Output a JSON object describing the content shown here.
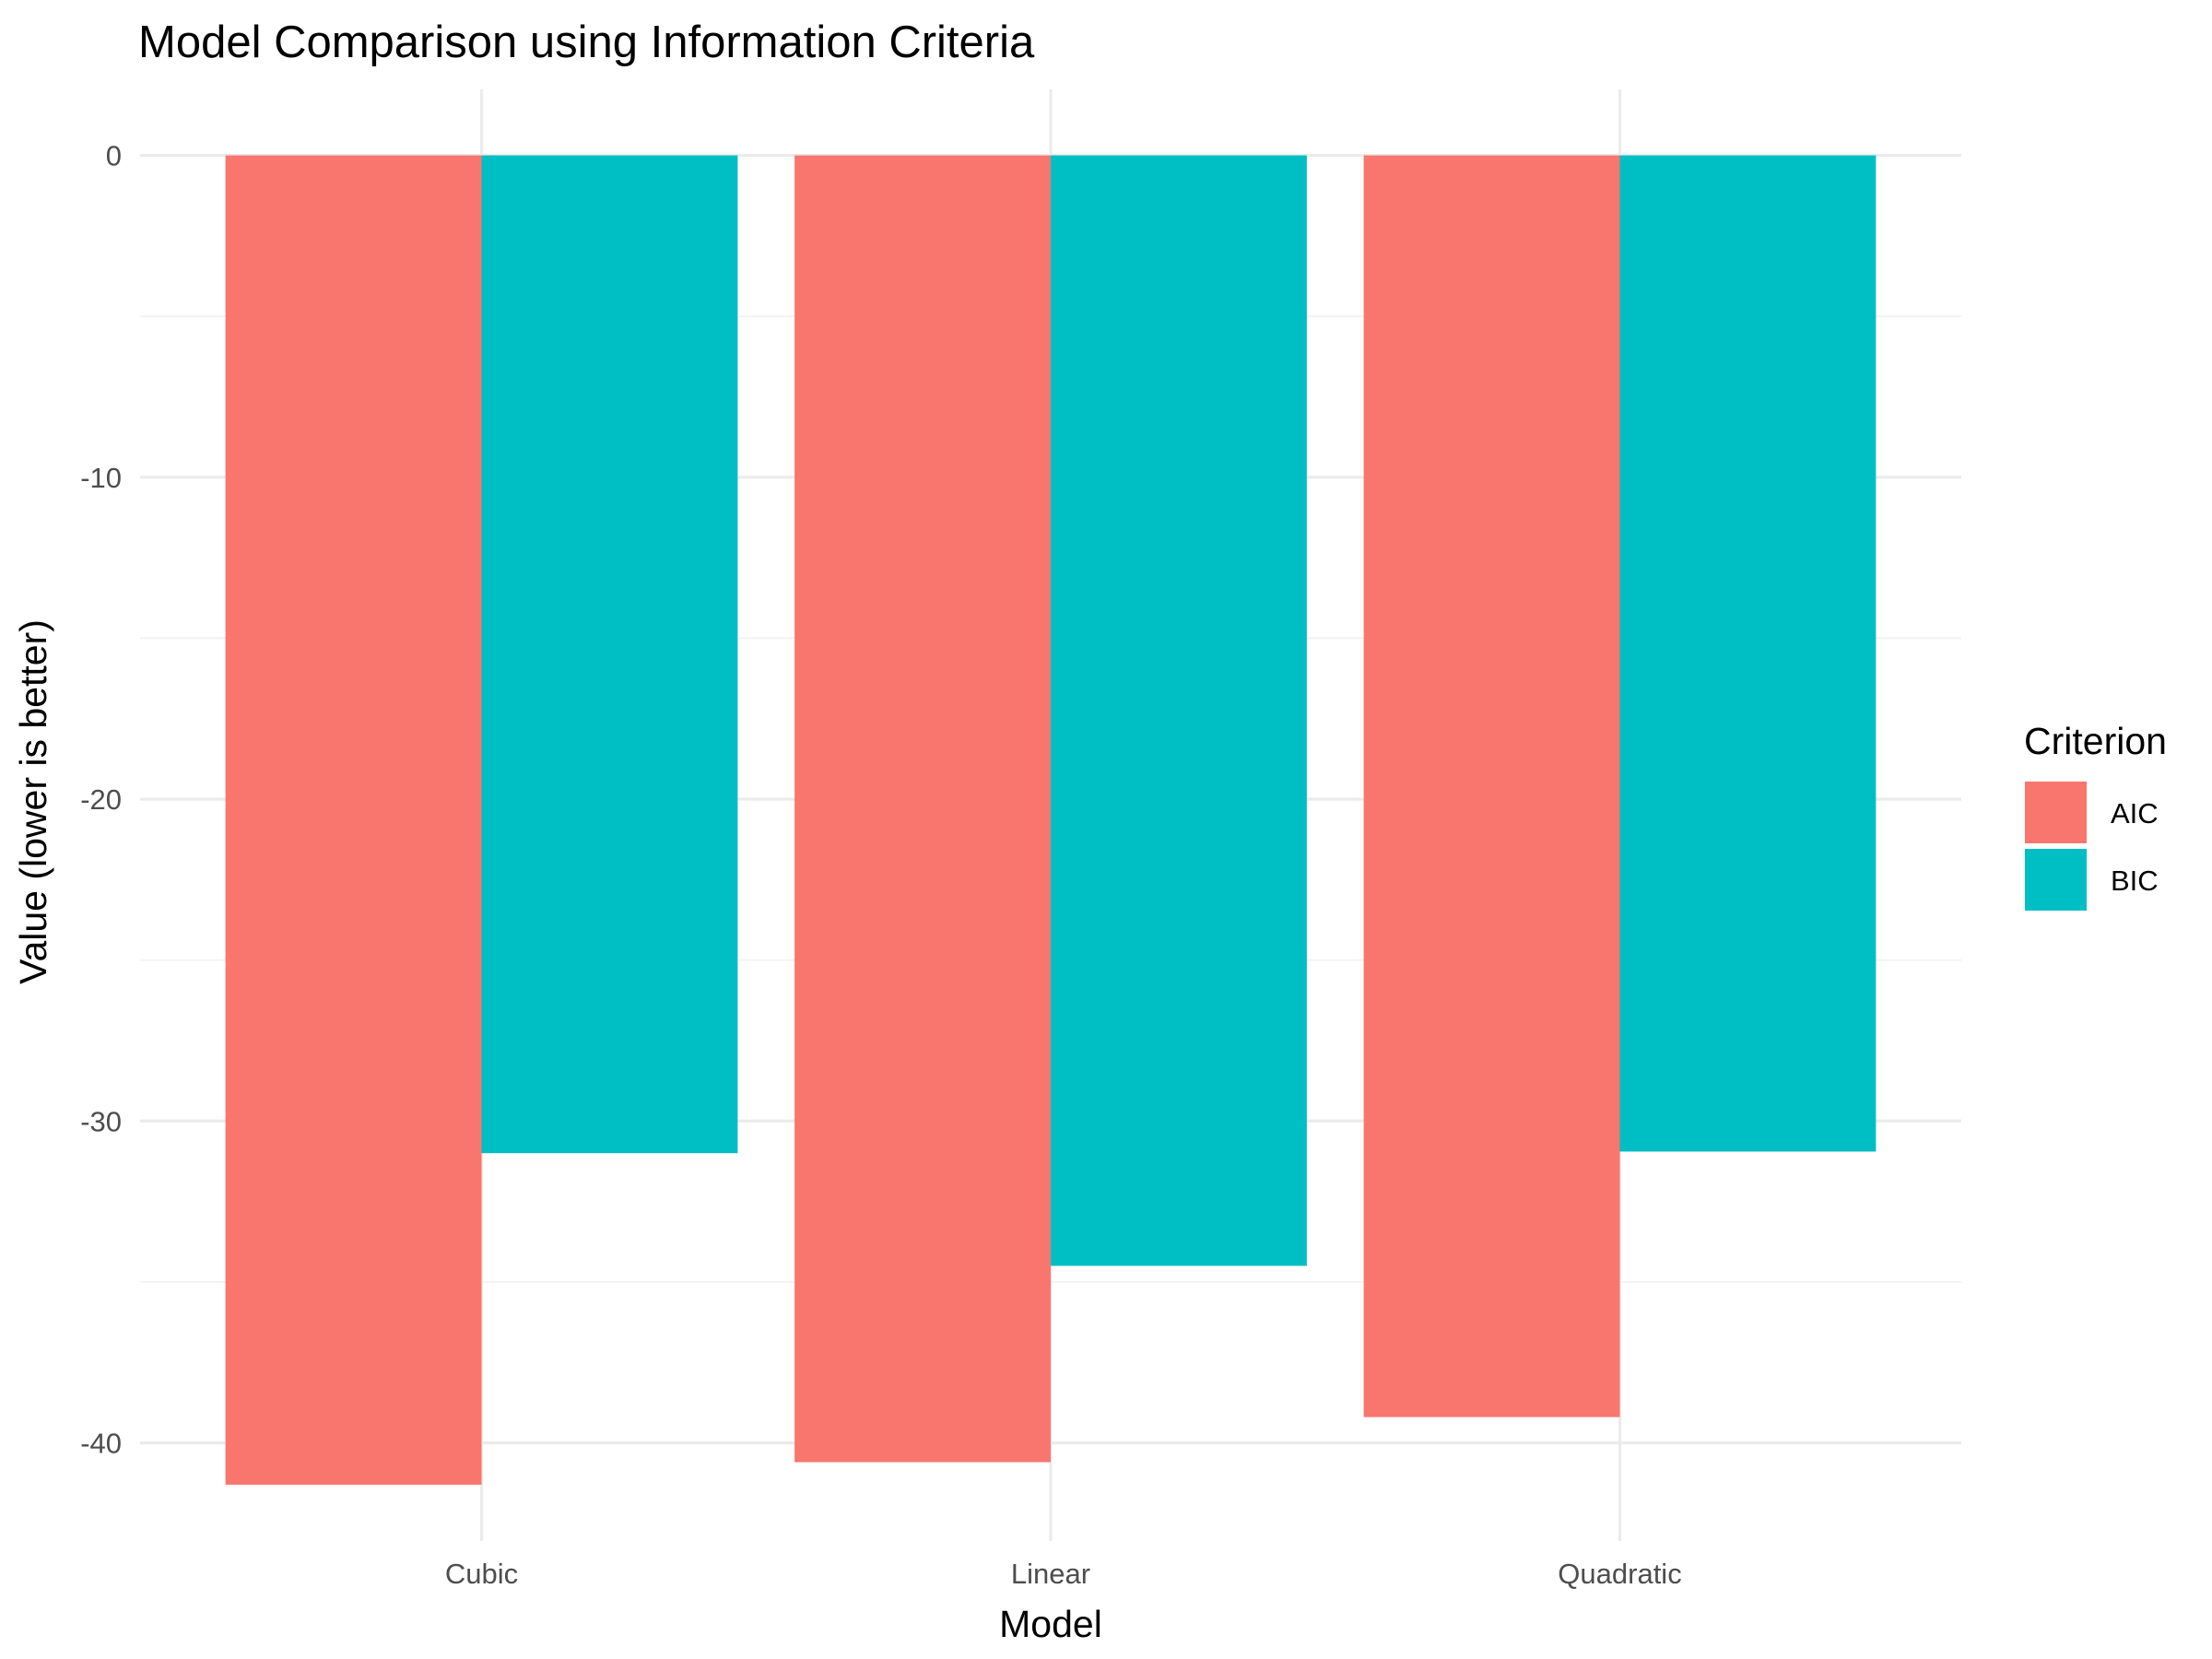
{
  "chart_data": {
    "type": "bar",
    "title": "Model Comparison using Information Criteria",
    "xlabel": "Model",
    "ylabel": "Value (lower is better)",
    "categories": [
      "Cubic",
      "Linear",
      "Quadratic"
    ],
    "series": [
      {
        "name": "AIC",
        "color": "#F8766D",
        "values": [
          -41.3,
          -40.6,
          -39.2
        ]
      },
      {
        "name": "BIC",
        "color": "#00BFC4",
        "values": [
          -31.0,
          -34.5,
          -30.95
        ]
      }
    ],
    "ylim": [
      -43.05,
      2.05
    ],
    "yticks": [
      0,
      -10,
      -20,
      -30,
      -40
    ],
    "legend": {
      "title": "Criterion",
      "position": "right"
    },
    "grid": true
  }
}
